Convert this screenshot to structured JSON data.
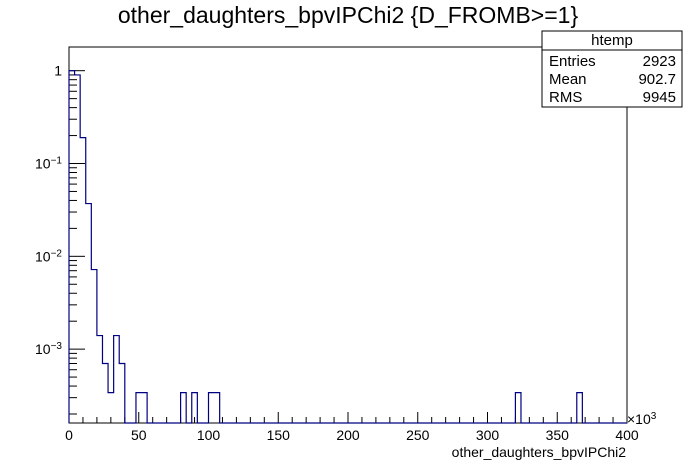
{
  "chart_data": {
    "type": "histogram",
    "title": "other_daughters_bpvIPChi2 {D_FROMB>=1}",
    "xlabel": "other_daughters_bpvIPChi2",
    "ylabel": "",
    "x_exponent_label": "×10",
    "x_exponent_power": "3",
    "xlim": [
      0,
      400
    ],
    "ylim": [
      0.00016,
      1.8
    ],
    "y_scale": "log",
    "x_ticks": [
      0,
      50,
      100,
      150,
      200,
      250,
      300,
      350,
      400
    ],
    "x_tick_labels": [
      "0",
      "50",
      "100",
      "150",
      "200",
      "250",
      "300",
      "350",
      "400"
    ],
    "y_ticks": [
      {
        "value": 1,
        "base": "1",
        "exp": ""
      },
      {
        "value": 0.1,
        "base": "10",
        "exp": "−1"
      },
      {
        "value": 0.01,
        "base": "10",
        "exp": "−2"
      },
      {
        "value": 0.001,
        "base": "10",
        "exp": "−3"
      }
    ],
    "bin_width": 4,
    "bin_start": 0,
    "values": [
      1.0,
      0.9,
      0.19,
      0.037,
      0.0072,
      0.0014,
      0.0007,
      0.00034,
      0.0014,
      0.0007,
      0.00016,
      0,
      0.00034,
      0.00034,
      0,
      0,
      0,
      0,
      0,
      0,
      0.00034,
      0,
      0.00034,
      0,
      0,
      0.00034,
      0.00034,
      0,
      0,
      0,
      0,
      0,
      0,
      0,
      0,
      0,
      0,
      0,
      0,
      0,
      0,
      0,
      0,
      0,
      0,
      0,
      0,
      0,
      0,
      0,
      0,
      0,
      0,
      0,
      0,
      0,
      0,
      0,
      0,
      0,
      0,
      0,
      0,
      0,
      0,
      0,
      0,
      0,
      0,
      0,
      0,
      0,
      0,
      0,
      0,
      0,
      0,
      0,
      0,
      0,
      0.00034,
      0,
      0,
      0,
      0,
      0,
      0,
      0,
      0,
      0,
      0,
      0.00034,
      0,
      0,
      0,
      0,
      0,
      0,
      0,
      0
    ],
    "series_color": "#000080",
    "stats_box": {
      "title": "htemp",
      "rows": [
        {
          "label": "Entries",
          "value": "2923"
        },
        {
          "label": "Mean",
          "value": "902.7"
        },
        {
          "label": "RMS",
          "value": "9945"
        }
      ]
    }
  }
}
